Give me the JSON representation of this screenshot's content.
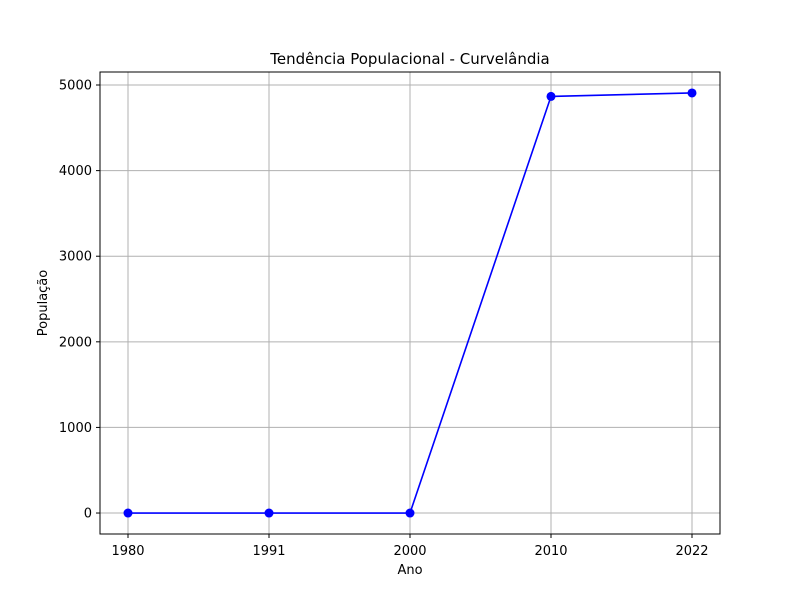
{
  "chart_data": {
    "type": "line",
    "title": "Tendência Populacional - Curvelândia",
    "xlabel": "Ano",
    "ylabel": "População",
    "categories": [
      "1980",
      "1991",
      "2000",
      "2010",
      "2022"
    ],
    "series": [
      {
        "values": [
          0,
          0,
          0,
          4867,
          4907
        ],
        "color": "#0000ff",
        "marker": "circle"
      }
    ],
    "yticks": [
      0,
      1000,
      2000,
      3000,
      4000,
      5000
    ],
    "ylim": [
      -245,
      5152
    ],
    "grid": true,
    "legend": "none"
  }
}
